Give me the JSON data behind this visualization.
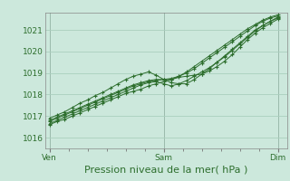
{
  "bg_color": "#cce8dc",
  "grid_color": "#aacfbe",
  "line_color": "#2d6e2d",
  "marker_color": "#2d6e2d",
  "xlabel": "Pression niveau de la mer( hPa )",
  "xlabel_fontsize": 8,
  "ylim": [
    1015.5,
    1021.8
  ],
  "yticks": [
    1016,
    1017,
    1018,
    1019,
    1020,
    1021
  ],
  "xtick_labels": [
    "Ven",
    "Sam",
    "Dim"
  ],
  "xtick_positions": [
    0.0,
    0.5,
    1.0
  ],
  "series": [
    [
      1016.9,
      1017.05,
      1017.2,
      1017.4,
      1017.6,
      1017.75,
      1017.95,
      1018.1,
      1018.3,
      1018.5,
      1018.7,
      1018.85,
      1018.95,
      1019.05,
      1018.9,
      1018.7,
      1018.55,
      1018.5,
      1018.5,
      1018.7,
      1018.95,
      1019.2,
      1019.5,
      1019.8,
      1020.1,
      1020.4,
      1020.7,
      1021.0,
      1021.2,
      1021.4,
      1021.55
    ],
    [
      1016.6,
      1016.75,
      1016.85,
      1017.0,
      1017.15,
      1017.3,
      1017.45,
      1017.6,
      1017.75,
      1017.9,
      1018.05,
      1018.15,
      1018.25,
      1018.4,
      1018.5,
      1018.6,
      1018.7,
      1018.8,
      1018.85,
      1018.9,
      1018.95,
      1019.1,
      1019.3,
      1019.55,
      1019.85,
      1020.2,
      1020.55,
      1020.85,
      1021.1,
      1021.3,
      1021.5
    ],
    [
      1016.65,
      1016.8,
      1016.95,
      1017.1,
      1017.25,
      1017.4,
      1017.55,
      1017.7,
      1017.85,
      1018.0,
      1018.15,
      1018.3,
      1018.45,
      1018.55,
      1018.6,
      1018.5,
      1018.4,
      1018.5,
      1018.65,
      1018.85,
      1019.05,
      1019.25,
      1019.5,
      1019.75,
      1020.05,
      1020.35,
      1020.65,
      1020.95,
      1021.2,
      1021.4,
      1021.6
    ],
    [
      1016.75,
      1016.9,
      1017.05,
      1017.2,
      1017.35,
      1017.5,
      1017.65,
      1017.8,
      1017.95,
      1018.1,
      1018.25,
      1018.4,
      1018.5,
      1018.6,
      1018.65,
      1018.7,
      1018.75,
      1018.85,
      1019.0,
      1019.2,
      1019.45,
      1019.7,
      1019.95,
      1020.2,
      1020.45,
      1020.7,
      1020.95,
      1021.2,
      1021.4,
      1021.55,
      1021.65
    ],
    [
      1016.8,
      1016.95,
      1017.1,
      1017.25,
      1017.4,
      1017.55,
      1017.7,
      1017.85,
      1018.0,
      1018.15,
      1018.3,
      1018.45,
      1018.55,
      1018.65,
      1018.7,
      1018.7,
      1018.7,
      1018.85,
      1019.05,
      1019.3,
      1019.55,
      1019.8,
      1020.05,
      1020.3,
      1020.55,
      1020.8,
      1021.05,
      1021.25,
      1021.45,
      1021.6,
      1021.7
    ]
  ]
}
